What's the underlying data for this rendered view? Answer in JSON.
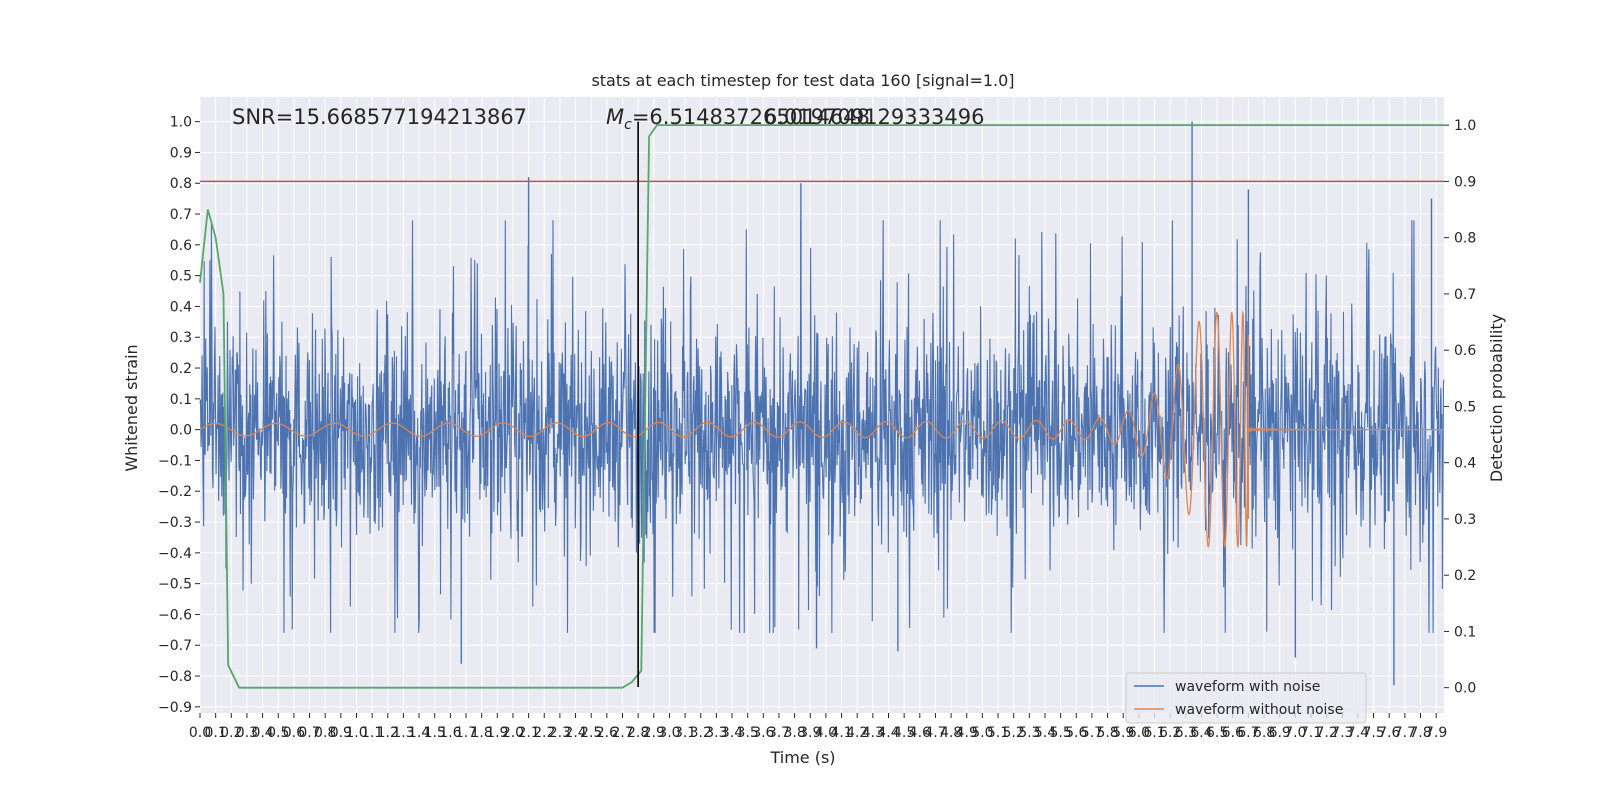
{
  "chart_data": {
    "type": "line",
    "title": "stats at each timestep for test data 160 [signal=1.0]",
    "xlabel": "Time (s)",
    "ylabel": "Whitened strain",
    "y2label": "Detection probability",
    "xlim": [
      0.0,
      7.95
    ],
    "ylim": [
      -0.92,
      1.08
    ],
    "y2lim": [
      -0.045,
      1.05
    ],
    "x_ticks": [
      0.0,
      0.1,
      0.2,
      0.3,
      0.4,
      0.5,
      0.6,
      0.7,
      0.8,
      0.9,
      1.0,
      1.1,
      1.2,
      1.3,
      1.4,
      1.5,
      1.6,
      1.7,
      1.8,
      1.9,
      2.0,
      2.1,
      2.2,
      2.3,
      2.4,
      2.5,
      2.6,
      2.7,
      2.8,
      2.9,
      3.0,
      3.1,
      3.2,
      3.3,
      3.4,
      3.5,
      3.6,
      3.7,
      3.8,
      3.9,
      4.0,
      4.1,
      4.2,
      4.3,
      4.4,
      4.5,
      4.6,
      4.7,
      4.8,
      4.9,
      5.0,
      5.1,
      5.2,
      5.3,
      5.4,
      5.5,
      5.6,
      5.7,
      5.8,
      5.9,
      6.0,
      6.1,
      6.2,
      6.3,
      6.4,
      6.5,
      6.6,
      6.7,
      6.8,
      6.9,
      7.0,
      7.1,
      7.2,
      7.3,
      7.4,
      7.5,
      7.6,
      7.7,
      7.8,
      7.9
    ],
    "y_ticks": [
      1.0,
      0.9,
      0.8,
      0.7,
      0.6,
      0.5,
      0.4,
      0.3,
      0.2,
      0.1,
      0.0,
      -0.1,
      -0.2,
      -0.3,
      -0.4,
      -0.5,
      -0.6,
      -0.7,
      -0.8,
      -0.9
    ],
    "y2_ticks": [
      1.0,
      0.9,
      0.8,
      0.7,
      0.6,
      0.5,
      0.4,
      0.3,
      0.2,
      0.1,
      0.0
    ],
    "annotations": {
      "snr": "SNR=15.668577194213867",
      "mc_symbol": "M",
      "mc_sub": "c",
      "mc_value": "=6.514837265014648",
      "overlap": "6.019709129333496"
    },
    "series": [
      {
        "name": "waveform with noise",
        "color": "#4c72b0",
        "envelope": 0.45,
        "peak_spikes": [
          [
            2.1,
            0.82
          ],
          [
            3.84,
            0.8
          ],
          [
            6.34,
            1.0
          ],
          [
            6.7,
            0.78
          ],
          [
            7.87,
            0.75
          ],
          [
            1.67,
            -0.76
          ],
          [
            7.63,
            -0.83
          ],
          [
            3.94,
            -0.71
          ],
          [
            4.46,
            -0.72
          ],
          [
            7.0,
            -0.74
          ]
        ]
      },
      {
        "name": "waveform without noise",
        "color": "#dd8452",
        "merger_time": 6.7,
        "peak_amplitude": 0.38,
        "start_amplitude": 0.02
      },
      {
        "name": "detection probability",
        "color": "#55a868",
        "points": [
          [
            0.0,
            0.72
          ],
          [
            0.05,
            0.85
          ],
          [
            0.1,
            0.8
          ],
          [
            0.15,
            0.7
          ],
          [
            0.18,
            0.04
          ],
          [
            0.25,
            0.0
          ],
          [
            2.7,
            0.0
          ],
          [
            2.76,
            0.01
          ],
          [
            2.82,
            0.03
          ],
          [
            2.87,
            0.98
          ],
          [
            2.92,
            1.0
          ],
          [
            7.95,
            1.0
          ]
        ]
      }
    ],
    "threshold_y2": 0.9,
    "threshold_color": "#c44e52",
    "marker_x": 2.8,
    "legend_position": "lower right",
    "grid": true
  }
}
